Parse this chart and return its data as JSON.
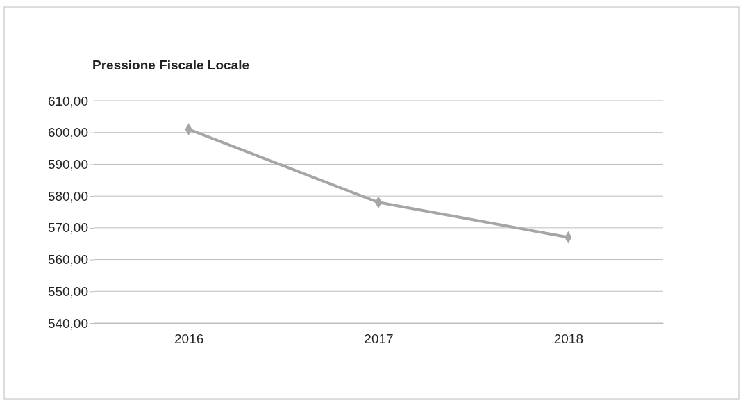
{
  "chart_data": {
    "type": "line",
    "title": "Pressione Fiscale Locale",
    "categories": [
      "2016",
      "2017",
      "2018"
    ],
    "series": [
      {
        "color": "#a6a6a6",
        "values": [
          601,
          578,
          567
        ]
      }
    ],
    "ylim": [
      540,
      610
    ],
    "yticks": [
      {
        "value": 540,
        "label": "540,00"
      },
      {
        "value": 550,
        "label": "550,00"
      },
      {
        "value": 560,
        "label": "560,00"
      },
      {
        "value": 570,
        "label": "570,00"
      },
      {
        "value": 580,
        "label": "580,00"
      },
      {
        "value": 590,
        "label": "590,00"
      },
      {
        "value": 600,
        "label": "600,00"
      },
      {
        "value": 610,
        "label": "610,00"
      }
    ],
    "grid": "y",
    "marker": "diamond",
    "line_style": "solid"
  }
}
